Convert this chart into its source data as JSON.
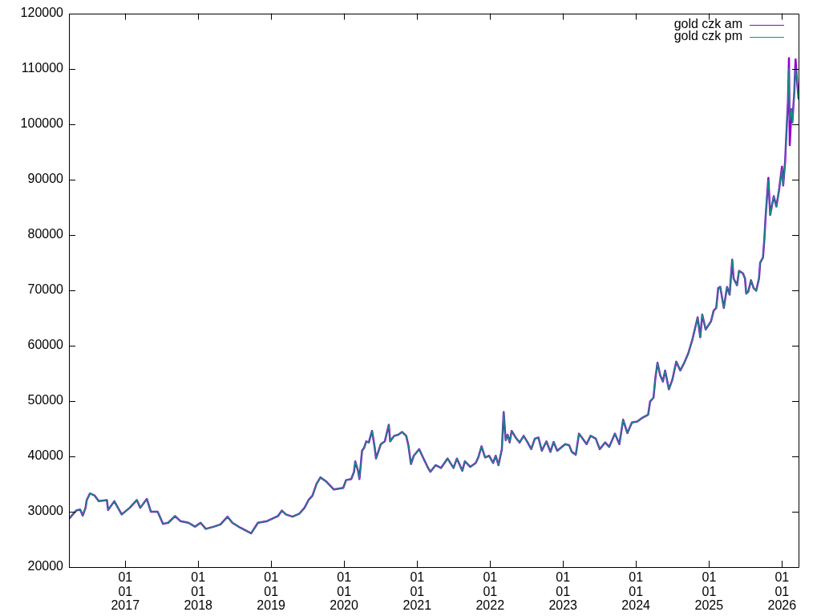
{
  "chart_data": {
    "type": "line",
    "x": [
      "2016-03-25",
      "2016-04-30",
      "2016-05-20",
      "2016-06-02",
      "2016-06-16",
      "2016-06-22",
      "2016-07-08",
      "2016-08-01",
      "2016-08-21",
      "2016-10-01",
      "2016-10-07",
      "2016-11-07",
      "2016-12-14",
      "2017-01-23",
      "2017-02-28",
      "2017-03-17",
      "2017-04-19",
      "2017-05-09",
      "2017-06-12",
      "2017-07-09",
      "2017-08-04",
      "2017-09-07",
      "2017-10-04",
      "2017-11-13",
      "2017-12-16",
      "2018-01-13",
      "2018-02-08",
      "2018-03-20",
      "2018-04-22",
      "2018-05-28",
      "2018-06-21",
      "2018-07-31",
      "2018-09-23",
      "2018-10-27",
      "2018-12-12",
      "2019-02-04",
      "2019-02-24",
      "2019-03-16",
      "2019-04-18",
      "2019-05-21",
      "2019-06-17",
      "2019-07-07",
      "2019-07-27",
      "2019-08-16",
      "2019-09-05",
      "2019-10-02",
      "2019-10-29",
      "2019-11-11",
      "2019-12-28",
      "2020-01-11",
      "2020-02-06",
      "2020-02-20",
      "2020-02-26",
      "2020-03-11",
      "2020-03-18",
      "2020-03-31",
      "2020-04-10",
      "2020-04-21",
      "2020-05-04",
      "2020-05-20",
      "2020-06-02",
      "2020-06-09",
      "2020-07-03",
      "2020-07-23",
      "2020-08-12",
      "2020-08-19",
      "2020-09-08",
      "2020-09-28",
      "2020-10-18",
      "2020-11-07",
      "2020-11-18",
      "2020-12-01",
      "2020-12-15",
      "2021-01-11",
      "2021-02-02",
      "2021-02-22",
      "2021-03-08",
      "2021-04-03",
      "2021-04-30",
      "2021-06-02",
      "2021-07-02",
      "2021-07-19",
      "2021-08-15",
      "2021-08-28",
      "2021-09-24",
      "2021-10-21",
      "2021-11-03",
      "2021-11-19",
      "2021-12-07",
      "2021-12-27",
      "2022-01-16",
      "2022-01-29",
      "2022-02-12",
      "2022-03-01",
      "2022-03-10",
      "2022-03-20",
      "2022-03-30",
      "2022-04-09",
      "2022-04-19",
      "2022-05-09",
      "2022-05-29",
      "2022-06-18",
      "2022-07-08",
      "2022-07-26",
      "2022-08-13",
      "2022-08-31",
      "2022-09-17",
      "2022-10-10",
      "2022-10-30",
      "2022-11-15",
      "2022-12-03",
      "2023-01-12",
      "2023-02-01",
      "2023-02-14",
      "2023-03-06",
      "2023-03-22",
      "2023-04-09",
      "2023-04-29",
      "2023-05-19",
      "2023-06-14",
      "2023-07-04",
      "2023-07-31",
      "2023-08-20",
      "2023-09-18",
      "2023-10-10",
      "2023-10-29",
      "2023-11-19",
      "2023-12-12",
      "2024-01-08",
      "2024-02-04",
      "2024-03-02",
      "2024-03-12",
      "2024-03-29",
      "2024-04-07",
      "2024-04-18",
      "2024-05-01",
      "2024-05-15",
      "2024-05-26",
      "2024-06-14",
      "2024-07-01",
      "2024-07-21",
      "2024-08-10",
      "2024-08-30",
      "2024-09-19",
      "2024-10-09",
      "2024-11-05",
      "2024-11-18",
      "2024-11-28",
      "2024-12-15",
      "2025-01-11",
      "2025-01-24",
      "2025-02-06",
      "2025-02-16",
      "2025-02-26",
      "2025-03-16",
      "2025-04-01",
      "2025-04-14",
      "2025-04-27",
      "2025-05-04",
      "2025-05-21",
      "2025-05-31",
      "2025-06-20",
      "2025-06-30",
      "2025-07-06",
      "2025-07-16",
      "2025-07-30",
      "2025-08-12",
      "2025-08-25",
      "2025-09-08",
      "2025-09-14",
      "2025-09-28",
      "2025-10-05",
      "2025-10-11",
      "2025-10-25",
      "2025-11-03",
      "2025-11-21",
      "2025-12-04",
      "2025-12-17",
      "2026-01-01",
      "2026-01-07",
      "2026-01-17",
      "2026-01-20",
      "2026-01-31",
      "2026-02-05",
      "2026-02-09",
      "2026-02-18",
      "2026-02-22",
      "2026-03-04",
      "2026-03-10",
      "2026-03-18",
      "2026-03-25"
    ],
    "series": [
      {
        "name": "gold czk am",
        "color": "#9400d3",
        "values": [
          28700,
          30200,
          30400,
          29300,
          30700,
          32100,
          33300,
          32900,
          31900,
          32100,
          30300,
          31900,
          29500,
          30700,
          32100,
          30700,
          32300,
          30000,
          30000,
          27800,
          28000,
          29200,
          28300,
          28000,
          27300,
          28000,
          26900,
          27300,
          27700,
          29100,
          28000,
          27100,
          26100,
          28000,
          28300,
          29200,
          30200,
          29500,
          29100,
          29600,
          30700,
          32100,
          32900,
          35000,
          36200,
          35500,
          34500,
          34000,
          34300,
          35700,
          35900,
          37200,
          39100,
          37400,
          35900,
          41000,
          41500,
          42700,
          42500,
          44600,
          41700,
          39600,
          42200,
          42700,
          45700,
          42700,
          43700,
          43900,
          44400,
          43700,
          42000,
          38600,
          40100,
          41300,
          39600,
          38100,
          37200,
          38400,
          37900,
          39600,
          37900,
          39600,
          37400,
          39100,
          38100,
          38800,
          39800,
          41800,
          39800,
          40100,
          38800,
          40100,
          38400,
          41300,
          48000,
          42900,
          43900,
          42500,
          44600,
          43400,
          42500,
          43700,
          42500,
          41300,
          43200,
          43400,
          41000,
          42700,
          40800,
          42600,
          41000,
          42200,
          42000,
          40800,
          40300,
          44100,
          43200,
          42200,
          43700,
          43200,
          41300,
          42500,
          41700,
          44100,
          42200,
          46600,
          44200,
          46100,
          46300,
          47000,
          47500,
          49900,
          50600,
          54000,
          56900,
          54700,
          53500,
          55500,
          52100,
          53800,
          57100,
          55500,
          56900,
          58600,
          61000,
          65100,
          61500,
          65600,
          62900,
          64400,
          66300,
          66800,
          70400,
          70600,
          66800,
          70600,
          69200,
          75500,
          72100,
          70900,
          73500,
          73000,
          72100,
          69400,
          69700,
          71800,
          70400,
          69900,
          72100,
          75000,
          75900,
          79300,
          83200,
          90300,
          83600,
          87000,
          85100,
          88000,
          92300,
          88900,
          93300,
          95900,
          104100,
          111900,
          96200,
          102700,
          100300,
          106000,
          111700,
          107500,
          104600
        ]
      },
      {
        "name": "gold czk pm",
        "color": "#009e73",
        "values": [
          28700,
          30200,
          30400,
          29300,
          30700,
          32100,
          33300,
          32900,
          31900,
          32100,
          30300,
          31900,
          29500,
          30700,
          32100,
          30700,
          32300,
          30000,
          30000,
          27800,
          28000,
          29200,
          28300,
          28000,
          27300,
          28000,
          26900,
          27300,
          27700,
          29100,
          28000,
          27100,
          26100,
          28000,
          28300,
          29200,
          30200,
          29500,
          29100,
          29600,
          30700,
          32100,
          32900,
          35000,
          36200,
          35500,
          34500,
          34000,
          34300,
          35700,
          35900,
          37200,
          39100,
          37400,
          35900,
          41000,
          41500,
          42700,
          42500,
          44600,
          41700,
          39600,
          42200,
          42700,
          45700,
          42700,
          43700,
          43900,
          44400,
          43700,
          42000,
          38600,
          40100,
          41300,
          39600,
          38100,
          37200,
          38400,
          37900,
          39600,
          37900,
          39600,
          37400,
          39100,
          38100,
          38800,
          39800,
          41800,
          39800,
          40100,
          38800,
          40100,
          38400,
          41300,
          48000,
          42900,
          43900,
          42500,
          44600,
          43400,
          42500,
          43700,
          42500,
          41300,
          43200,
          43400,
          41000,
          42700,
          40800,
          42600,
          41000,
          42200,
          42000,
          40800,
          40300,
          44100,
          43200,
          42200,
          43700,
          43200,
          41300,
          42500,
          41700,
          44100,
          42200,
          46600,
          44200,
          46100,
          46300,
          47000,
          47500,
          49900,
          50600,
          54000,
          56900,
          54700,
          53500,
          55500,
          52100,
          53800,
          57100,
          55500,
          56900,
          58600,
          61000,
          65100,
          61500,
          65600,
          62900,
          64400,
          66300,
          66800,
          70400,
          70600,
          66800,
          70600,
          69200,
          75500,
          72100,
          70900,
          73500,
          73000,
          72100,
          69400,
          69700,
          71800,
          70400,
          69900,
          72100,
          75000,
          75900,
          79300,
          83200,
          89900,
          83600,
          87000,
          85100,
          88000,
          91800,
          88900,
          93300,
          95900,
          104100,
          110100,
          100700,
          102700,
          100300,
          106000,
          110100,
          107500,
          104600
        ]
      }
    ],
    "xlim": [
      "2016-03-25",
      "2026-03-25"
    ],
    "xticks": [
      {
        "value": "2017-01-01",
        "label": "01\n01\n2017"
      },
      {
        "value": "2018-01-01",
        "label": "01\n01\n2018"
      },
      {
        "value": "2019-01-01",
        "label": "01\n01\n2019"
      },
      {
        "value": "2020-01-01",
        "label": "01\n01\n2020"
      },
      {
        "value": "2021-01-01",
        "label": "01\n01\n2021"
      },
      {
        "value": "2022-01-01",
        "label": "01\n01\n2022"
      },
      {
        "value": "2023-01-01",
        "label": "01\n01\n2023"
      },
      {
        "value": "2024-01-01",
        "label": "01\n01\n2024"
      },
      {
        "value": "2025-01-01",
        "label": "01\n01\n2025"
      },
      {
        "value": "2026-01-01",
        "label": "01\n01\n2026"
      }
    ],
    "ylim": [
      20000,
      120000
    ],
    "yticks": [
      20000,
      30000,
      40000,
      50000,
      60000,
      70000,
      80000,
      90000,
      100000,
      110000,
      120000
    ],
    "legend": "top right"
  }
}
